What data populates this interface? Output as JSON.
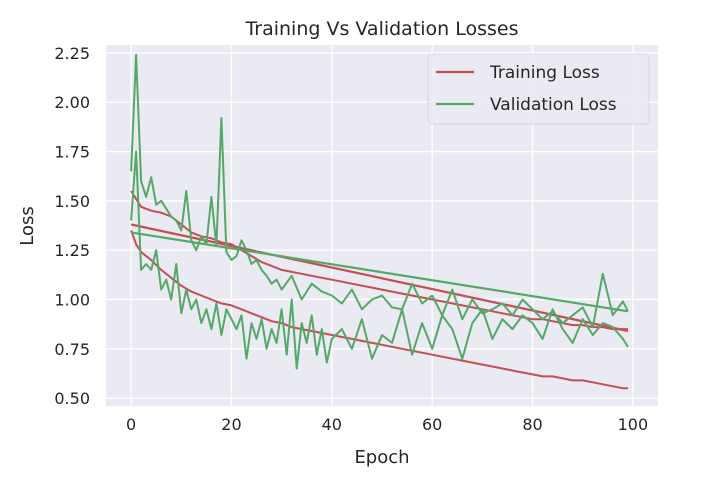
{
  "chart_data": {
    "type": "line",
    "title": "Training Vs Validation Losses",
    "xlabel": "Epoch",
    "ylabel": "Loss",
    "xlim": [
      -5,
      105
    ],
    "ylim": [
      0.46,
      2.29
    ],
    "xticks": [
      0,
      20,
      40,
      60,
      80,
      100
    ],
    "yticks": [
      0.5,
      0.75,
      1.0,
      1.25,
      1.5,
      1.75,
      2.0,
      2.25
    ],
    "grid": true,
    "legend_position": "top-right",
    "colors": {
      "plot_background": "#EAEAF2",
      "grid": "#FFFFFF",
      "training": "#C44E52",
      "validation": "#55A868"
    },
    "series": [
      {
        "name": "Training Loss",
        "role": "run-1",
        "color": "#C44E52",
        "x": [
          0,
          2,
          4,
          6,
          8,
          10,
          12,
          14,
          16,
          18,
          20,
          22,
          24,
          26,
          28,
          30,
          32,
          34,
          36,
          38,
          40,
          42,
          44,
          46,
          48,
          50,
          52,
          54,
          56,
          58,
          60,
          62,
          64,
          66,
          68,
          70,
          72,
          74,
          76,
          78,
          80,
          82,
          84,
          86,
          88,
          90,
          92,
          94,
          96,
          98,
          99
        ],
        "y": [
          1.55,
          1.47,
          1.45,
          1.44,
          1.42,
          1.38,
          1.34,
          1.32,
          1.31,
          1.29,
          1.28,
          1.25,
          1.22,
          1.19,
          1.17,
          1.15,
          1.14,
          1.13,
          1.12,
          1.11,
          1.1,
          1.09,
          1.08,
          1.07,
          1.06,
          1.05,
          1.04,
          1.03,
          1.02,
          1.01,
          1.0,
          0.99,
          0.98,
          0.97,
          0.96,
          0.95,
          0.94,
          0.93,
          0.92,
          0.91,
          0.9,
          0.9,
          0.89,
          0.88,
          0.87,
          0.87,
          0.86,
          0.86,
          0.85,
          0.85,
          0.85
        ]
      },
      {
        "name": "Training Loss",
        "role": "run-2",
        "color": "#C44E52",
        "x": [
          0,
          1,
          2,
          4,
          6,
          8,
          10,
          12,
          14,
          16,
          18,
          20,
          22,
          24,
          26,
          28,
          30,
          32,
          34,
          36,
          38,
          40,
          42,
          44,
          46,
          48,
          50,
          52,
          54,
          56,
          58,
          60,
          62,
          64,
          66,
          68,
          70,
          72,
          74,
          76,
          78,
          80,
          82,
          84,
          86,
          88,
          90,
          92,
          94,
          96,
          98,
          99
        ],
        "y": [
          1.35,
          1.28,
          1.24,
          1.2,
          1.15,
          1.11,
          1.07,
          1.04,
          1.02,
          1.0,
          0.98,
          0.97,
          0.95,
          0.93,
          0.91,
          0.89,
          0.88,
          0.86,
          0.85,
          0.84,
          0.83,
          0.82,
          0.81,
          0.8,
          0.79,
          0.78,
          0.77,
          0.76,
          0.75,
          0.74,
          0.73,
          0.72,
          0.71,
          0.7,
          0.69,
          0.68,
          0.67,
          0.66,
          0.65,
          0.64,
          0.63,
          0.62,
          0.61,
          0.61,
          0.6,
          0.59,
          0.59,
          0.58,
          0.57,
          0.56,
          0.55,
          0.55
        ]
      },
      {
        "name": "Training Loss",
        "role": "trend",
        "color": "#C44E52",
        "x": [
          0,
          99
        ],
        "y": [
          1.38,
          0.84
        ]
      },
      {
        "name": "Validation Loss",
        "role": "run-1",
        "color": "#55A868",
        "x": [
          0,
          1,
          2,
          3,
          4,
          5,
          6,
          7,
          8,
          9,
          10,
          11,
          12,
          13,
          14,
          15,
          16,
          17,
          18,
          19,
          20,
          21,
          22,
          23,
          24,
          25,
          26,
          27,
          28,
          29,
          30,
          32,
          34,
          36,
          38,
          40,
          42,
          44,
          46,
          48,
          50,
          52,
          54,
          56,
          58,
          60,
          62,
          64,
          66,
          68,
          70,
          72,
          74,
          76,
          78,
          80,
          82,
          84,
          86,
          88,
          90,
          92,
          94,
          96,
          98,
          99
        ],
        "y": [
          1.65,
          2.24,
          1.6,
          1.52,
          1.62,
          1.48,
          1.5,
          1.46,
          1.42,
          1.4,
          1.35,
          1.55,
          1.3,
          1.25,
          1.32,
          1.28,
          1.52,
          1.27,
          1.92,
          1.24,
          1.2,
          1.22,
          1.3,
          1.25,
          1.18,
          1.2,
          1.15,
          1.12,
          1.08,
          1.1,
          1.05,
          1.12,
          1.0,
          1.08,
          1.04,
          1.02,
          0.98,
          1.05,
          0.95,
          1.0,
          1.02,
          0.96,
          0.95,
          1.08,
          0.98,
          1.02,
          0.92,
          1.05,
          0.9,
          1.0,
          0.93,
          0.95,
          0.98,
          0.92,
          1.0,
          0.95,
          0.9,
          0.94,
          0.88,
          0.92,
          0.96,
          0.86,
          1.13,
          0.92,
          0.99,
          0.94
        ]
      },
      {
        "name": "Validation Loss",
        "role": "run-2",
        "color": "#55A868",
        "x": [
          0,
          1,
          2,
          3,
          4,
          5,
          6,
          7,
          8,
          9,
          10,
          11,
          12,
          13,
          14,
          15,
          16,
          17,
          18,
          19,
          20,
          21,
          22,
          23,
          24,
          25,
          26,
          27,
          28,
          29,
          30,
          31,
          32,
          33,
          34,
          35,
          36,
          37,
          38,
          39,
          40,
          42,
          44,
          46,
          48,
          50,
          52,
          54,
          56,
          58,
          60,
          62,
          64,
          66,
          68,
          70,
          72,
          74,
          76,
          78,
          80,
          82,
          84,
          86,
          88,
          90,
          92,
          94,
          96,
          98,
          99
        ],
        "y": [
          1.4,
          1.75,
          1.15,
          1.18,
          1.15,
          1.25,
          1.05,
          1.1,
          1.0,
          1.18,
          0.93,
          1.05,
          0.95,
          1.0,
          0.88,
          0.95,
          0.85,
          0.98,
          0.82,
          0.95,
          0.9,
          0.85,
          0.92,
          0.7,
          0.88,
          0.8,
          0.9,
          0.75,
          0.85,
          0.78,
          0.95,
          0.72,
          1.0,
          0.65,
          0.88,
          0.78,
          0.92,
          0.72,
          0.85,
          0.68,
          0.8,
          0.85,
          0.75,
          0.9,
          0.7,
          0.82,
          0.78,
          0.95,
          0.72,
          0.88,
          0.75,
          0.92,
          0.85,
          0.7,
          0.88,
          0.95,
          0.8,
          0.9,
          0.85,
          0.92,
          0.88,
          0.8,
          0.95,
          0.85,
          0.78,
          0.9,
          0.82,
          0.88,
          0.86,
          0.8,
          0.76
        ]
      },
      {
        "name": "Validation Loss",
        "role": "trend",
        "color": "#55A868",
        "x": [
          0,
          99
        ],
        "y": [
          1.34,
          0.94
        ]
      }
    ],
    "legend": [
      {
        "label": "Training Loss",
        "color": "#C44E52"
      },
      {
        "label": "Validation Loss",
        "color": "#55A868"
      }
    ]
  }
}
